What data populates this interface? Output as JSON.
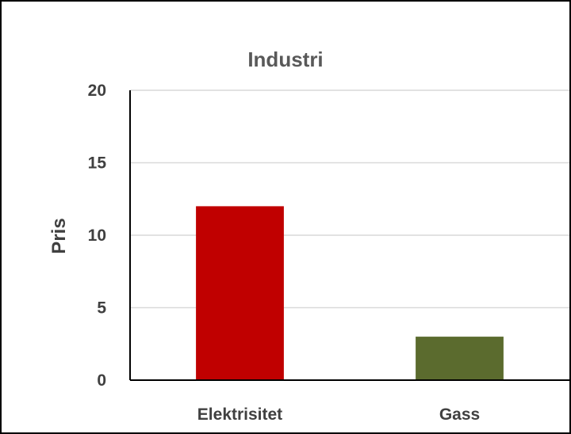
{
  "chart_data": {
    "type": "bar",
    "title": "Industri",
    "xlabel": "",
    "ylabel": "Pris",
    "categories": [
      "Elektrisitet",
      "Gass"
    ],
    "values": [
      12,
      3
    ],
    "bar_colors": [
      "#c00000",
      "#5b6b2e"
    ],
    "ylim": [
      0,
      20
    ],
    "yticks": [
      0,
      5,
      10,
      15,
      20
    ],
    "grid": true,
    "legend": "none"
  },
  "style": {
    "gridline_color": "#d9d9d9",
    "axis_color": "#000000",
    "frame_color": "#000000"
  }
}
